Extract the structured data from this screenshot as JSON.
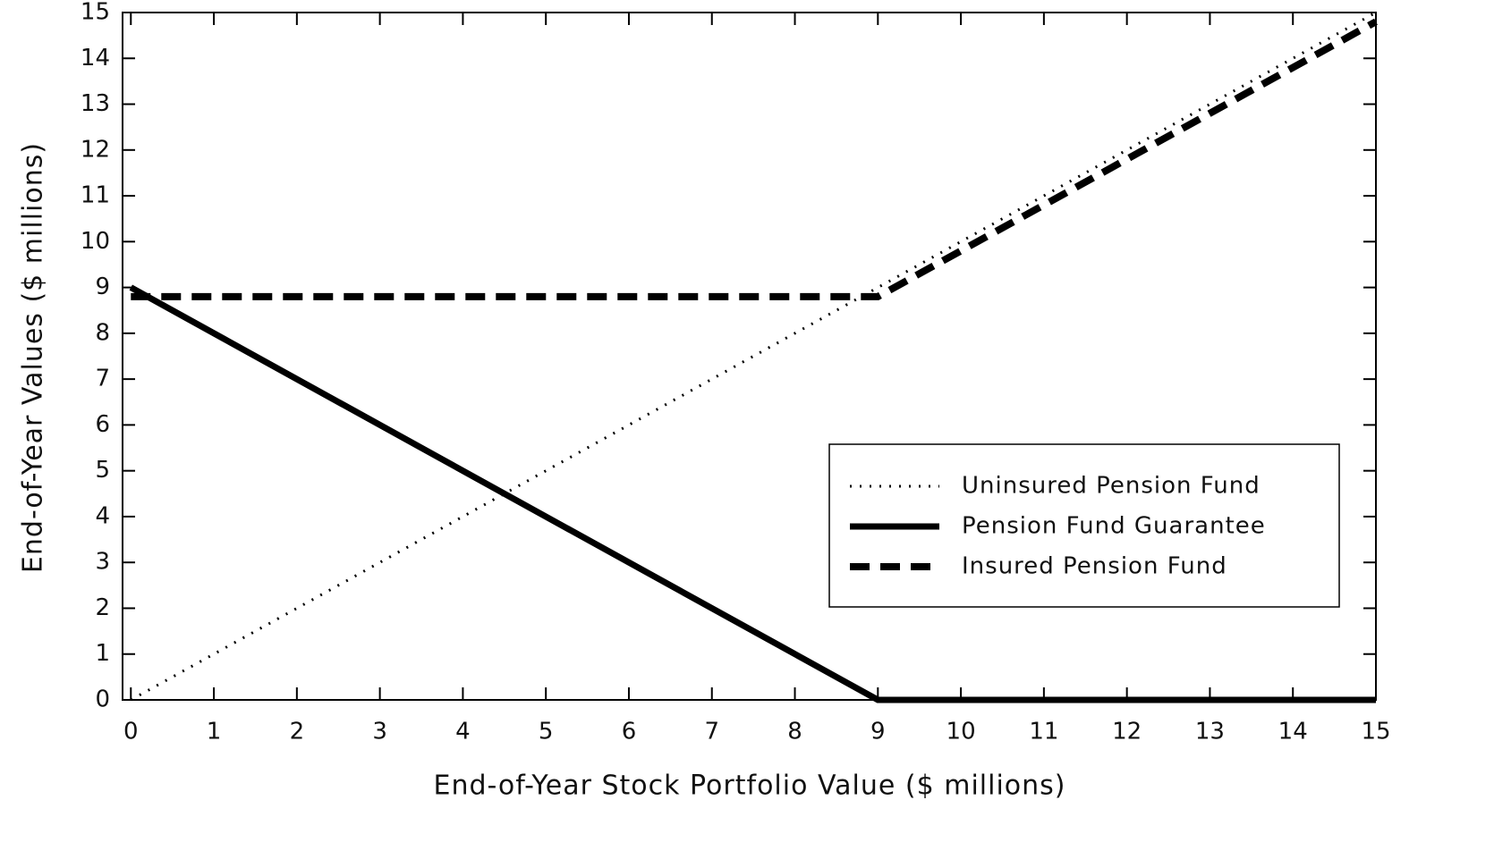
{
  "chart_data": {
    "type": "line",
    "xlabel": "End-of-Year Stock Portfolio Value ($ millions)",
    "ylabel": "End-of-Year Values ($ millions)",
    "xlim": [
      -0.1,
      15
    ],
    "ylim": [
      0,
      15
    ],
    "xticks": [
      0,
      1,
      2,
      3,
      4,
      5,
      6,
      7,
      8,
      9,
      10,
      11,
      12,
      13,
      14,
      15
    ],
    "yticks": [
      0,
      1,
      2,
      3,
      4,
      5,
      6,
      7,
      8,
      9,
      10,
      11,
      12,
      13,
      14,
      15
    ],
    "series": [
      {
        "name": "Uninsured Pension Fund",
        "color": "#000000",
        "style": "dotted",
        "x": [
          0,
          15
        ],
        "values": [
          0,
          15
        ]
      },
      {
        "name": "Pension Fund Guarantee",
        "color": "#000000",
        "style": "solid",
        "x": [
          0,
          9,
          15
        ],
        "values": [
          9,
          0,
          0
        ]
      },
      {
        "name": "Insured Pension Fund",
        "color": "#000000",
        "style": "dashed",
        "x": [
          0,
          9,
          15
        ],
        "values": [
          8.8,
          8.8,
          14.8
        ]
      }
    ]
  }
}
